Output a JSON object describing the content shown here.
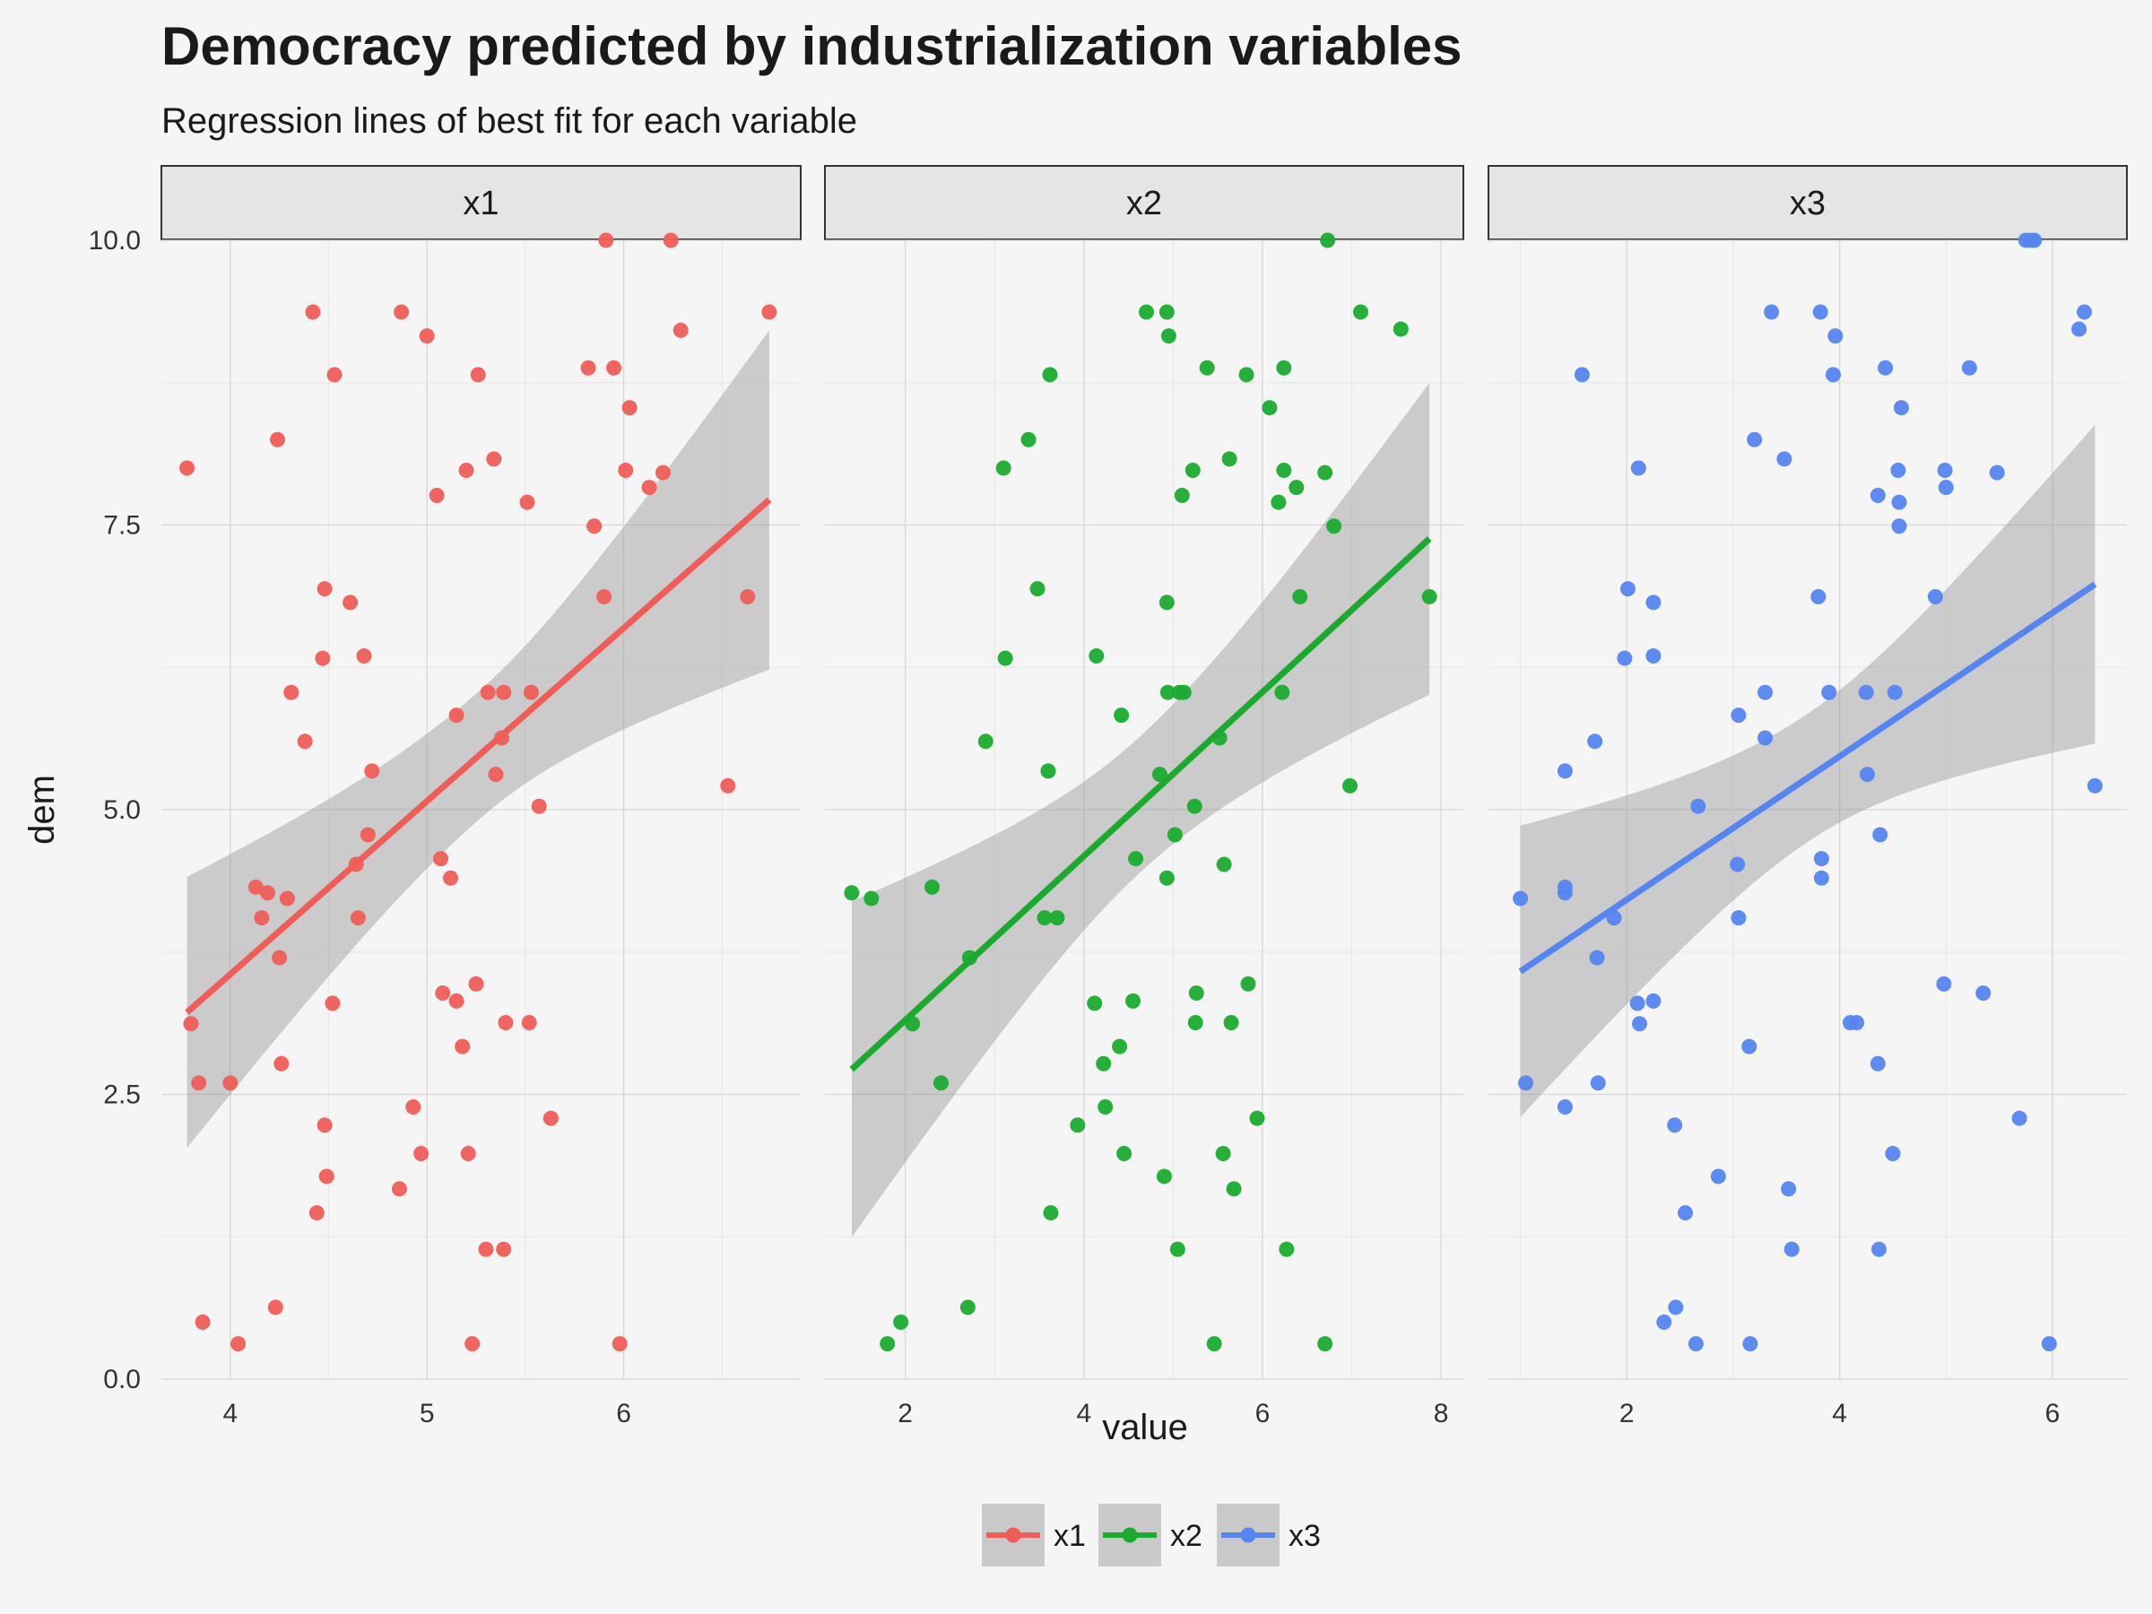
{
  "chart_data": {
    "type": "scatter",
    "title": "Democracy predicted by industrialization variables",
    "subtitle": "Regression lines of best fit for each variable",
    "xlabel": "value",
    "ylabel": "dem",
    "ylim": [
      0,
      10
    ],
    "yticks": [
      "0.0",
      "2.5",
      "5.0",
      "7.5",
      "10.0"
    ],
    "grid": true,
    "legend_position": "bottom",
    "panels": [
      {
        "name": "x1",
        "color": "#f05d57",
        "xlim": [
          3.65,
          6.9
        ],
        "xticks": [
          4,
          5,
          6
        ],
        "fit": {
          "x": [
            3.78,
            6.74
          ],
          "y": [
            3.22,
            7.72
          ],
          "ci_low": [
            2.04,
            6.26
          ],
          "ci_high": [
            4.42,
            9.24
          ]
        },
        "points": [
          [
            3.78,
            8.0
          ],
          [
            3.8,
            3.12
          ],
          [
            3.84,
            2.6
          ],
          [
            3.86,
            0.5
          ],
          [
            4.0,
            2.6
          ],
          [
            4.04,
            0.31
          ],
          [
            4.13,
            4.32
          ],
          [
            4.16,
            4.05
          ],
          [
            4.19,
            4.27
          ],
          [
            4.23,
            0.63
          ],
          [
            4.24,
            8.25
          ],
          [
            4.25,
            3.7
          ],
          [
            4.26,
            2.77
          ],
          [
            4.29,
            4.22
          ],
          [
            4.31,
            6.03
          ],
          [
            4.38,
            5.6
          ],
          [
            4.42,
            9.37
          ],
          [
            4.44,
            1.46
          ],
          [
            4.47,
            6.33
          ],
          [
            4.48,
            2.23
          ],
          [
            4.49,
            1.78
          ],
          [
            4.48,
            6.94
          ],
          [
            4.52,
            3.3
          ],
          [
            4.53,
            8.82
          ],
          [
            4.61,
            6.82
          ],
          [
            4.64,
            4.52
          ],
          [
            4.65,
            4.05
          ],
          [
            4.68,
            6.35
          ],
          [
            4.7,
            4.78
          ],
          [
            4.72,
            5.34
          ],
          [
            4.86,
            1.67
          ],
          [
            4.87,
            9.37
          ],
          [
            4.93,
            2.39
          ],
          [
            4.97,
            1.98
          ],
          [
            5.0,
            9.16
          ],
          [
            5.05,
            7.76
          ],
          [
            5.07,
            4.57
          ],
          [
            5.08,
            3.39
          ],
          [
            5.12,
            4.4
          ],
          [
            5.15,
            5.83
          ],
          [
            5.15,
            3.32
          ],
          [
            5.18,
            2.92
          ],
          [
            5.21,
            1.98
          ],
          [
            5.2,
            7.98
          ],
          [
            5.23,
            0.31
          ],
          [
            5.25,
            3.47
          ],
          [
            5.26,
            8.82
          ],
          [
            5.3,
            1.14
          ],
          [
            5.31,
            6.03
          ],
          [
            5.34,
            8.08
          ],
          [
            5.35,
            5.31
          ],
          [
            5.38,
            5.63
          ],
          [
            5.39,
            6.03
          ],
          [
            5.39,
            1.14
          ],
          [
            5.4,
            3.13
          ],
          [
            5.51,
            7.7
          ],
          [
            5.52,
            3.13
          ],
          [
            5.53,
            6.03
          ],
          [
            5.57,
            5.03
          ],
          [
            5.63,
            2.29
          ],
          [
            5.82,
            8.88
          ],
          [
            5.85,
            7.49
          ],
          [
            5.9,
            6.87
          ],
          [
            5.91,
            10.0
          ],
          [
            5.95,
            8.88
          ],
          [
            5.98,
            0.31
          ],
          [
            6.01,
            7.98
          ],
          [
            6.03,
            8.53
          ],
          [
            6.13,
            7.83
          ],
          [
            6.2,
            7.96
          ],
          [
            6.24,
            10.0
          ],
          [
            6.29,
            9.21
          ],
          [
            6.53,
            5.21
          ],
          [
            6.63,
            6.87
          ],
          [
            6.74,
            9.37
          ]
        ]
      },
      {
        "name": "x2",
        "color": "#1aab2e",
        "xlim": [
          1.1,
          8.25
        ],
        "xticks": [
          2,
          4,
          6,
          8
        ],
        "fit": {
          "x": [
            1.4,
            7.87
          ],
          "y": [
            2.72,
            7.38
          ],
          "ci_low": [
            1.25,
            6.02
          ],
          "ci_high": [
            4.2,
            8.76
          ]
        },
        "points": [
          [
            1.4,
            4.27
          ],
          [
            1.62,
            4.22
          ],
          [
            1.8,
            0.31
          ],
          [
            1.95,
            0.5
          ],
          [
            2.08,
            3.12
          ],
          [
            2.3,
            4.32
          ],
          [
            2.4,
            2.6
          ],
          [
            2.7,
            0.63
          ],
          [
            2.72,
            3.7
          ],
          [
            2.9,
            5.6
          ],
          [
            3.1,
            8.0
          ],
          [
            3.12,
            6.33
          ],
          [
            3.38,
            8.25
          ],
          [
            3.48,
            6.94
          ],
          [
            3.56,
            4.05
          ],
          [
            3.6,
            5.34
          ],
          [
            3.62,
            8.82
          ],
          [
            3.63,
            1.46
          ],
          [
            3.7,
            4.05
          ],
          [
            3.93,
            2.23
          ],
          [
            4.12,
            3.3
          ],
          [
            4.14,
            6.35
          ],
          [
            4.22,
            2.77
          ],
          [
            4.24,
            2.39
          ],
          [
            4.4,
            2.92
          ],
          [
            4.42,
            5.83
          ],
          [
            4.45,
            1.98
          ],
          [
            4.55,
            3.32
          ],
          [
            4.58,
            4.57
          ],
          [
            4.7,
            9.37
          ],
          [
            4.85,
            5.31
          ],
          [
            4.9,
            1.78
          ],
          [
            4.93,
            9.37
          ],
          [
            4.93,
            6.82
          ],
          [
            4.94,
            6.03
          ],
          [
            4.93,
            4.4
          ],
          [
            4.95,
            9.16
          ],
          [
            5.02,
            4.78
          ],
          [
            5.05,
            1.14
          ],
          [
            5.07,
            6.03
          ],
          [
            5.1,
            7.76
          ],
          [
            5.12,
            6.03
          ],
          [
            5.22,
            7.98
          ],
          [
            5.24,
            5.03
          ],
          [
            5.25,
            3.13
          ],
          [
            5.26,
            3.39
          ],
          [
            5.38,
            8.88
          ],
          [
            5.46,
            0.31
          ],
          [
            5.52,
            5.63
          ],
          [
            5.56,
            1.98
          ],
          [
            5.57,
            4.52
          ],
          [
            5.63,
            8.08
          ],
          [
            5.65,
            3.13
          ],
          [
            5.68,
            1.67
          ],
          [
            5.82,
            8.82
          ],
          [
            5.84,
            3.47
          ],
          [
            5.94,
            2.29
          ],
          [
            6.08,
            8.53
          ],
          [
            6.18,
            7.7
          ],
          [
            6.22,
            6.03
          ],
          [
            6.24,
            8.88
          ],
          [
            6.24,
            7.98
          ],
          [
            6.27,
            1.14
          ],
          [
            6.38,
            7.83
          ],
          [
            6.42,
            6.87
          ],
          [
            6.7,
            7.96
          ],
          [
            6.7,
            0.31
          ],
          [
            6.73,
            10.0
          ],
          [
            6.8,
            7.49
          ],
          [
            6.98,
            5.21
          ],
          [
            7.1,
            9.37
          ],
          [
            7.55,
            9.22
          ],
          [
            7.87,
            6.87
          ]
        ]
      },
      {
        "name": "x3",
        "color": "#5585f0",
        "xlim": [
          0.7,
          6.7
        ],
        "xticks": [
          2,
          4,
          6
        ],
        "fit": {
          "x": [
            1.0,
            6.4
          ],
          "y": [
            3.58,
            6.98
          ],
          "ci_low": [
            2.29,
            5.58
          ],
          "ci_high": [
            4.85,
            8.38
          ]
        },
        "points": [
          [
            1.0,
            4.22
          ],
          [
            1.05,
            2.6
          ],
          [
            1.42,
            5.34
          ],
          [
            1.42,
            4.32
          ],
          [
            1.42,
            4.27
          ],
          [
            1.42,
            2.39
          ],
          [
            1.58,
            8.82
          ],
          [
            1.7,
            5.6
          ],
          [
            1.72,
            3.7
          ],
          [
            1.73,
            2.6
          ],
          [
            1.88,
            4.05
          ],
          [
            1.98,
            6.33
          ],
          [
            2.01,
            6.94
          ],
          [
            2.1,
            3.3
          ],
          [
            2.11,
            8.0
          ],
          [
            2.12,
            3.12
          ],
          [
            2.25,
            6.82
          ],
          [
            2.25,
            6.35
          ],
          [
            2.25,
            3.32
          ],
          [
            2.35,
            0.5
          ],
          [
            2.45,
            2.23
          ],
          [
            2.46,
            0.63
          ],
          [
            2.55,
            1.46
          ],
          [
            2.65,
            0.31
          ],
          [
            2.67,
            5.03
          ],
          [
            2.86,
            1.78
          ],
          [
            3.05,
            5.83
          ],
          [
            3.04,
            4.52
          ],
          [
            3.05,
            4.05
          ],
          [
            3.15,
            2.92
          ],
          [
            3.16,
            0.31
          ],
          [
            3.2,
            8.25
          ],
          [
            3.3,
            5.63
          ],
          [
            3.3,
            6.03
          ],
          [
            3.36,
            9.37
          ],
          [
            3.48,
            8.08
          ],
          [
            3.52,
            1.67
          ],
          [
            3.55,
            1.14
          ],
          [
            3.8,
            6.87
          ],
          [
            3.82,
            9.37
          ],
          [
            3.83,
            4.57
          ],
          [
            3.83,
            4.4
          ],
          [
            3.9,
            6.03
          ],
          [
            3.94,
            8.82
          ],
          [
            3.96,
            9.16
          ],
          [
            4.1,
            3.13
          ],
          [
            4.16,
            3.13
          ],
          [
            4.25,
            6.03
          ],
          [
            4.26,
            5.31
          ],
          [
            4.36,
            7.76
          ],
          [
            4.36,
            2.77
          ],
          [
            4.37,
            1.14
          ],
          [
            4.38,
            4.78
          ],
          [
            4.43,
            8.88
          ],
          [
            4.5,
            1.98
          ],
          [
            4.52,
            6.03
          ],
          [
            4.55,
            7.98
          ],
          [
            4.56,
            7.7
          ],
          [
            4.56,
            7.49
          ],
          [
            4.58,
            8.53
          ],
          [
            4.9,
            6.87
          ],
          [
            4.98,
            3.47
          ],
          [
            4.99,
            7.98
          ],
          [
            5.0,
            7.83
          ],
          [
            5.22,
            8.88
          ],
          [
            5.35,
            3.39
          ],
          [
            5.48,
            7.96
          ],
          [
            5.69,
            2.29
          ],
          [
            5.75,
            10.0
          ],
          [
            5.8,
            10.0
          ],
          [
            5.83,
            10.0
          ],
          [
            5.97,
            0.31
          ],
          [
            6.25,
            9.22
          ],
          [
            6.3,
            9.37
          ],
          [
            6.4,
            5.21
          ]
        ]
      }
    ]
  }
}
